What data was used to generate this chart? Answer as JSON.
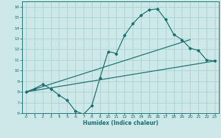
{
  "xlabel": "Humidex (Indice chaleur)",
  "xlim": [
    -0.5,
    23.5
  ],
  "ylim": [
    6,
    16.5
  ],
  "xticks": [
    0,
    1,
    2,
    3,
    4,
    5,
    6,
    7,
    8,
    9,
    10,
    11,
    12,
    13,
    14,
    15,
    16,
    17,
    18,
    19,
    20,
    21,
    22,
    23
  ],
  "yticks": [
    6,
    7,
    8,
    9,
    10,
    11,
    12,
    13,
    14,
    15,
    16
  ],
  "bg_color": "#cce8e8",
  "line_color": "#1a6e6e",
  "grid_color": "#aad0d0",
  "line1_x": [
    0,
    1,
    2,
    3,
    4,
    5,
    6,
    7,
    8,
    9,
    10,
    11,
    12,
    13,
    14,
    15,
    16,
    17,
    18,
    19,
    20,
    21,
    22,
    23
  ],
  "line1_y": [
    8.0,
    8.3,
    8.7,
    8.3,
    7.7,
    7.2,
    6.2,
    5.9,
    6.7,
    9.3,
    11.8,
    11.6,
    13.3,
    14.4,
    15.2,
    15.7,
    15.8,
    14.8,
    13.4,
    12.9,
    12.1,
    11.9,
    11.0,
    10.9
  ],
  "line2_x": [
    0,
    23
  ],
  "line2_y": [
    8.0,
    10.9
  ],
  "line3_x": [
    0,
    20
  ],
  "line3_y": [
    8.0,
    12.9
  ]
}
